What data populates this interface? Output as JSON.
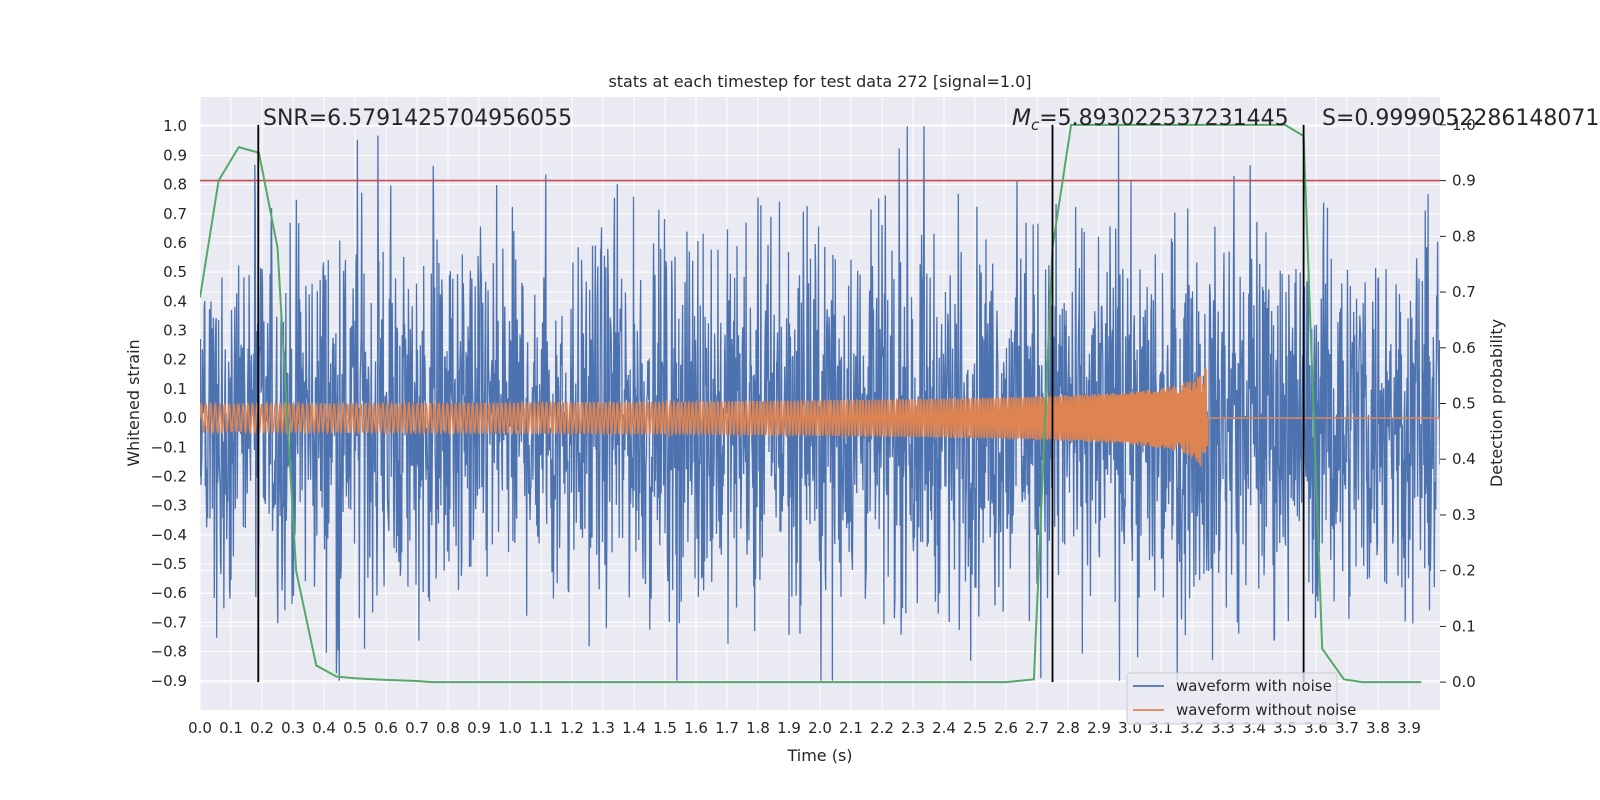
{
  "chart_data": {
    "type": "line",
    "title": "stats at each timestep for test data 272 [signal=1.0]",
    "xlabel": "Time (s)",
    "ylabel": "Whitened strain",
    "y2label": "Detection probability",
    "xlim": [
      0.0,
      4.0
    ],
    "ylim": [
      -1.0,
      1.1
    ],
    "y2lim": [
      -0.05,
      1.05
    ],
    "xticks": [
      "0.0",
      "0.1",
      "0.2",
      "0.3",
      "0.4",
      "0.5",
      "0.6",
      "0.7",
      "0.8",
      "0.9",
      "1.0",
      "1.1",
      "1.2",
      "1.3",
      "1.4",
      "1.5",
      "1.6",
      "1.7",
      "1.8",
      "1.9",
      "2.0",
      "2.1",
      "2.2",
      "2.3",
      "2.4",
      "2.5",
      "2.6",
      "2.7",
      "2.8",
      "2.9",
      "3.0",
      "3.1",
      "3.2",
      "3.3",
      "3.4",
      "3.5",
      "3.6",
      "3.7",
      "3.8",
      "3.9"
    ],
    "yticks": [
      "1.0",
      "0.9",
      "0.8",
      "0.7",
      "0.6",
      "0.5",
      "0.4",
      "0.3",
      "0.2",
      "0.1",
      "0.0",
      "−0.1",
      "−0.2",
      "−0.3",
      "−0.4",
      "−0.5",
      "−0.6",
      "−0.7",
      "−0.8",
      "−0.9"
    ],
    "y2ticks": [
      "1.0",
      "0.9",
      "0.8",
      "0.7",
      "0.6",
      "0.5",
      "0.4",
      "0.3",
      "0.2",
      "0.1",
      "0.0"
    ],
    "grid": true,
    "legend_placement": "lower-right",
    "series": [
      {
        "name": "waveform with noise",
        "color": "#4c72b0",
        "axis": "left",
        "kind": "noise",
        "amplitude_range": [
          -0.9,
          1.0
        ]
      },
      {
        "name": "waveform without noise",
        "color": "#dd8452",
        "axis": "left",
        "kind": "chirp",
        "merger_time": 3.25,
        "peak_amplitude": 0.18
      },
      {
        "name": "",
        "color": "#55a868",
        "axis": "right",
        "x": [
          0.0,
          0.06,
          0.125,
          0.19,
          0.25,
          0.31,
          0.375,
          0.44,
          0.5,
          0.6,
          0.7,
          0.75,
          1.0,
          2.0,
          2.6,
          2.69,
          2.75,
          2.81,
          3.0,
          3.25,
          3.5,
          3.56,
          3.62,
          3.69,
          3.75,
          3.94
        ],
        "y": [
          0.69,
          0.9,
          0.96,
          0.95,
          0.78,
          0.2,
          0.03,
          0.01,
          0.007,
          0.004,
          0.002,
          0.0,
          0.0,
          0.0,
          0.0,
          0.005,
          0.78,
          1.0,
          1.0,
          1.0,
          1.0,
          0.98,
          0.06,
          0.005,
          0.0,
          0.0
        ]
      }
    ],
    "threshold_line": {
      "value": 0.9,
      "axis": "right",
      "color": "#c44e52"
    },
    "vlines": [
      0.188,
      2.75,
      3.56
    ],
    "annotations": {
      "snr": "SNR=6.5791425704956055",
      "mc_symbol": "M",
      "mc_sub": "c",
      "mc_value": "=5.893022537231445",
      "s": "S=0.9999052286148071"
    },
    "legend": [
      "waveform with noise",
      "waveform without noise"
    ]
  },
  "colors": {
    "background": "#ffffff",
    "axes_face": "#eaeaf2",
    "grid": "#ffffff",
    "text": "#262626"
  }
}
